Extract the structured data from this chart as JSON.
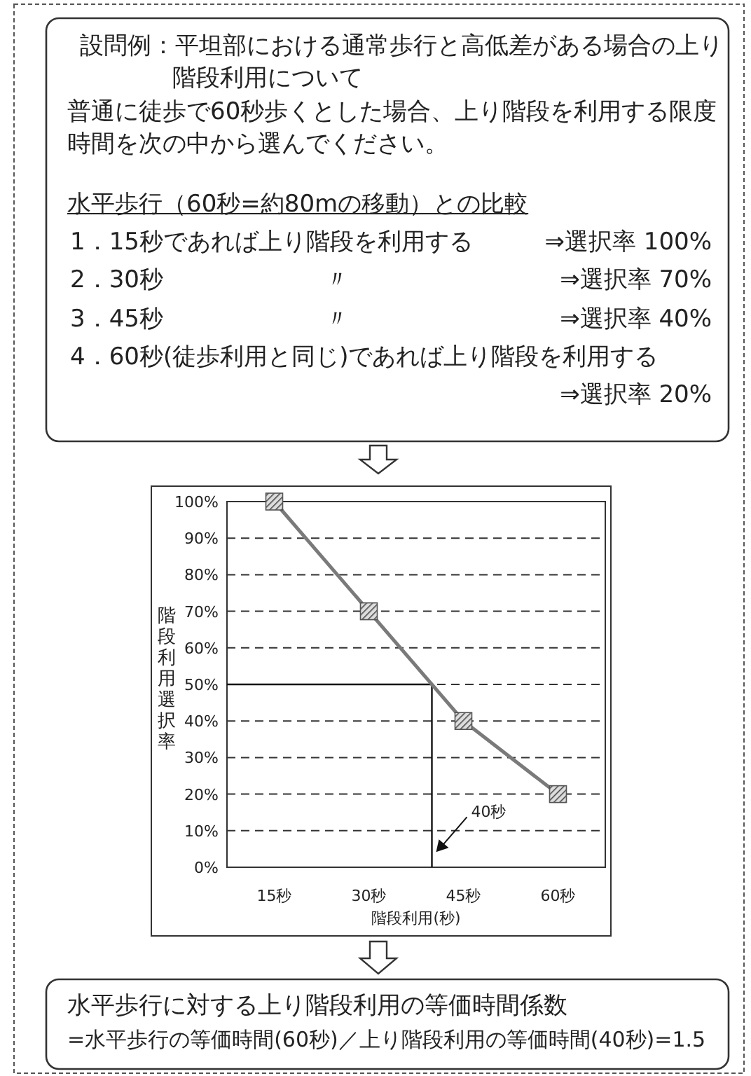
{
  "chart_data": {
    "type": "line",
    "xlabel": "階段利用(秒)",
    "ylabel": "階段利用選択率",
    "x": [
      15,
      30,
      45,
      60
    ],
    "values": [
      100,
      70,
      40,
      20
    ],
    "color": "#7a7a7a",
    "marker": "square",
    "grid": "y",
    "xlim": [
      7.5,
      67.5
    ],
    "xticks": [
      {
        "value": 15,
        "label": "15秒"
      },
      {
        "value": 30,
        "label": "30秒"
      },
      {
        "value": 45,
        "label": "45秒"
      },
      {
        "value": 60,
        "label": "60秒"
      }
    ],
    "ylim": [
      0,
      100
    ],
    "yticks": [
      {
        "value": 0,
        "label": "0%"
      },
      {
        "value": 10,
        "label": "10%"
      },
      {
        "value": 20,
        "label": "20%"
      },
      {
        "value": 30,
        "label": "30%"
      },
      {
        "value": 40,
        "label": "40%"
      },
      {
        "value": 50,
        "label": "50%"
      },
      {
        "value": 60,
        "label": "60%"
      },
      {
        "value": 70,
        "label": "70%"
      },
      {
        "value": 80,
        "label": "80%"
      },
      {
        "value": 90,
        "label": "90%"
      },
      {
        "value": 100,
        "label": "100%"
      }
    ],
    "ref_lines": [
      {
        "axis": "y",
        "value": 50
      },
      {
        "axis": "x",
        "value": 40
      }
    ],
    "annotations": [
      "設問例：平坦部における通常歩行と高低差がある場合の上り階段利用について",
      "普通に徒歩で60秒歩くとした場合、上り階段を利用する限度時間を次の中から選んでください。",
      "水平歩行（60秒=約80mの移動）との比較",
      "1．15秒であれば上り階段を利用する",
      "⇒選択率 100%",
      "2．30秒",
      "〃",
      "⇒選択率 70%",
      "3．45秒",
      "〃",
      "⇒選択率 40%",
      "4．60秒(徒歩利用と同じ)であれば上り階段を利用する",
      "⇒選択率 20%",
      "水平歩行に対する上り階段利用の等価時間係数",
      "=水平歩行の等価時間(60秒)／上り階段利用の等価時間(40秒)=1.5",
      {
        "text": "40秒",
        "x": 40,
        "y": 3
      }
    ]
  }
}
